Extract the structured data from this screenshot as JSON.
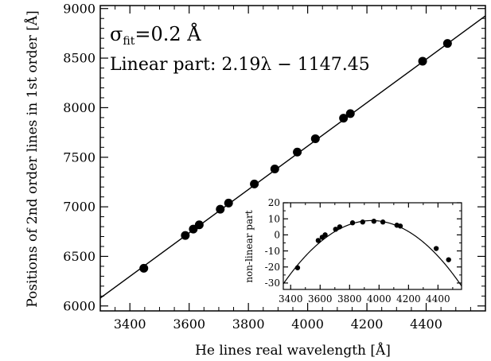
{
  "chart_data": [
    {
      "type": "scatter",
      "title": "",
      "xlabel": "He lines real wavelength [Å]",
      "ylabel": "Positions of 2nd order lines in 1st order [Å]",
      "xlim": [
        3300,
        4600
      ],
      "ylim": [
        5950,
        9030
      ],
      "xticks": [
        3400,
        3600,
        3800,
        4000,
        4200,
        4400
      ],
      "yticks": [
        6000,
        6500,
        7000,
        7500,
        8000,
        8500,
        9000
      ],
      "grid": false,
      "annotations": {
        "sigma_symbol": "σ",
        "sigma_sub": "fit",
        "sigma_value": "=0.2 Å",
        "linear_part": "Linear part: 2.19λ − 1147.45"
      },
      "points": [
        {
          "x": 3447,
          "y": 6380
        },
        {
          "x": 3587,
          "y": 6711
        },
        {
          "x": 3614,
          "y": 6775
        },
        {
          "x": 3634,
          "y": 6818
        },
        {
          "x": 3705,
          "y": 6976
        },
        {
          "x": 3733,
          "y": 7038
        },
        {
          "x": 3820,
          "y": 7230
        },
        {
          "x": 3889,
          "y": 7382
        },
        {
          "x": 3965,
          "y": 7552
        },
        {
          "x": 4026,
          "y": 7687
        },
        {
          "x": 4121,
          "y": 7894
        },
        {
          "x": 4144,
          "y": 7940
        },
        {
          "x": 4388,
          "y": 8469
        },
        {
          "x": 4472,
          "y": 8648
        }
      ],
      "fit_line": {
        "slope": 2.19,
        "intercept": -1147.45
      }
    },
    {
      "type": "scatter",
      "title": "",
      "xlabel": "",
      "ylabel": "non-linear part",
      "xlim": [
        3350,
        4560
      ],
      "ylim": [
        -34,
        20
      ],
      "xticks": [
        3400,
        3600,
        3800,
        4000,
        4200,
        4400
      ],
      "yticks": [
        -30,
        -20,
        -10,
        0,
        10,
        20
      ],
      "grid": false,
      "points": [
        {
          "x": 3447,
          "y": -20.5
        },
        {
          "x": 3587,
          "y": -3.5
        },
        {
          "x": 3614,
          "y": -1.5
        },
        {
          "x": 3634,
          "y": 0.0
        },
        {
          "x": 3705,
          "y": 3.5
        },
        {
          "x": 3733,
          "y": 5.0
        },
        {
          "x": 3820,
          "y": 7.5
        },
        {
          "x": 3889,
          "y": 8.0
        },
        {
          "x": 3965,
          "y": 8.5
        },
        {
          "x": 4026,
          "y": 8.0
        },
        {
          "x": 4121,
          "y": 6.0
        },
        {
          "x": 4144,
          "y": 5.5
        },
        {
          "x": 4388,
          "y": -8.5
        },
        {
          "x": 4472,
          "y": -15.5
        }
      ],
      "fit_curve": {
        "vertex_x": 3950,
        "vertex_y": 8.9,
        "a": -0.0001095
      }
    }
  ]
}
